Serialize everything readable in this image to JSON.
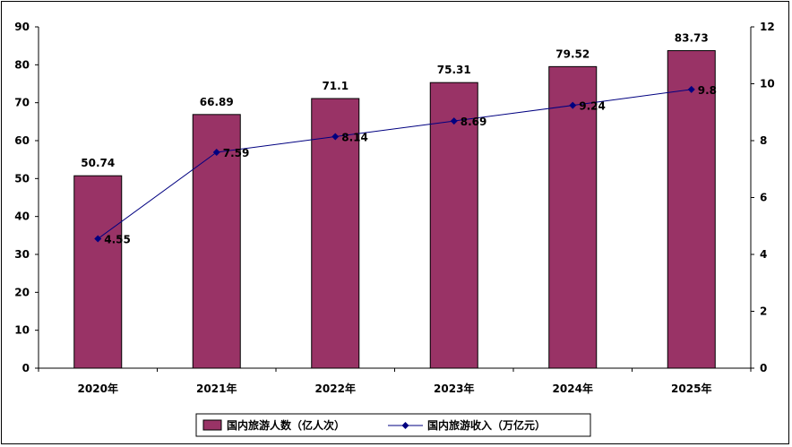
{
  "chart_data": {
    "type": "bar",
    "categories": [
      "2020年",
      "2021年",
      "2022年",
      "2023年",
      "2024年",
      "2025年"
    ],
    "series": [
      {
        "name": "国内旅游人数（亿人次）",
        "type": "bar",
        "axis": "left",
        "color": "#993366",
        "values": [
          50.74,
          66.89,
          71.1,
          75.31,
          79.52,
          83.73
        ],
        "labels": [
          "50.74",
          "66.89",
          "71.1",
          "75.31",
          "79.52",
          "83.73"
        ]
      },
      {
        "name": "国内旅游收入（万亿元）",
        "type": "line",
        "axis": "right",
        "color": "#000080",
        "values": [
          4.55,
          7.59,
          8.14,
          8.69,
          9.24,
          9.8
        ],
        "labels": [
          "4.55",
          "7.59",
          "8.14",
          "8.69",
          "9.24",
          "9.8"
        ]
      }
    ],
    "y_left": {
      "ylim": [
        0,
        90
      ],
      "ticks": [
        "0",
        "10",
        "20",
        "30",
        "40",
        "50",
        "60",
        "70",
        "80",
        "90"
      ]
    },
    "y_right": {
      "ylim": [
        0,
        12
      ],
      "ticks": [
        "0",
        "2",
        "4",
        "6",
        "8",
        "10",
        "12"
      ]
    },
    "title": "",
    "xlabel": "",
    "ylabel": "",
    "grid": false,
    "legend": "bottom"
  }
}
